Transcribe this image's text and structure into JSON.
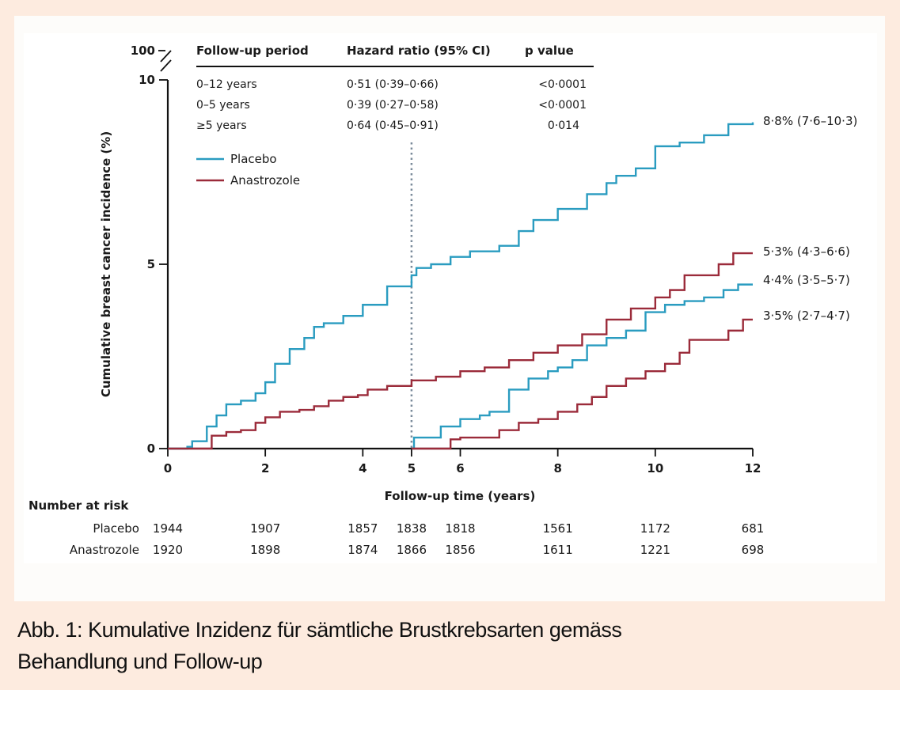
{
  "caption": {
    "line1": "Abb. 1: Kumulative Inzidenz für sämtliche Brustkrebsarten gemäss",
    "line2": "Behandlung und Follow-up"
  },
  "colors": {
    "placebo": "#2a9cc0",
    "anastrozole": "#9b2b3a",
    "frame": "#fdebdf",
    "divider": "#7a8a9a"
  },
  "hr_table": {
    "headers": [
      "Follow-up period",
      "Hazard ratio (95% CI)",
      "p value"
    ],
    "rows": [
      [
        "0–12 years",
        "0·51 (0·39–0·66)",
        "<0·0001"
      ],
      [
        "0–5 years",
        "0·39 (0·27–0·58)",
        "<0·0001"
      ],
      [
        "≥5 years",
        "0·64 (0·45–0·91)",
        "0·014"
      ]
    ]
  },
  "number_at_risk": {
    "title": "Number at risk",
    "times": [
      0,
      2,
      4,
      5,
      6,
      8,
      10,
      12
    ],
    "rows": [
      {
        "label": "Placebo",
        "values": [
          "1944",
          "1907",
          "1857",
          "1838",
          "1818",
          "1561",
          "1172",
          "681"
        ]
      },
      {
        "label": "Anastrozole",
        "values": [
          "1920",
          "1898",
          "1874",
          "1866",
          "1856",
          "1611",
          "1221",
          "698"
        ]
      }
    ]
  },
  "chart_data": {
    "type": "line",
    "title": "",
    "xlabel": "Follow-up time (years)",
    "ylabel": "Cumulative breast cancer incidence (%)",
    "xlim": [
      0,
      12
    ],
    "ylim": [
      0,
      10
    ],
    "x_ticks": [
      "0",
      "2",
      "4",
      "5",
      "6",
      "8",
      "10",
      "12"
    ],
    "x_tick_values": [
      0,
      2,
      4,
      5,
      6,
      8,
      10,
      12
    ],
    "y_ticks": [
      "0",
      "5",
      "10"
    ],
    "y_tick_values": [
      0,
      5,
      10
    ],
    "y_break_label": "100",
    "vertical_reference_line_x": 5,
    "legend": {
      "position": "top-left",
      "entries": [
        "Placebo",
        "Anastrozole"
      ]
    },
    "grid": false,
    "series": [
      {
        "name": "Placebo",
        "segment": "0–12 years",
        "end_label": "8·8% (7·6–10·3)",
        "points": [
          [
            0,
            0
          ],
          [
            0.4,
            0.05
          ],
          [
            0.5,
            0.2
          ],
          [
            0.8,
            0.6
          ],
          [
            1.0,
            0.9
          ],
          [
            1.2,
            1.2
          ],
          [
            1.5,
            1.3
          ],
          [
            1.8,
            1.5
          ],
          [
            2.0,
            1.8
          ],
          [
            2.2,
            2.3
          ],
          [
            2.5,
            2.7
          ],
          [
            2.8,
            3.0
          ],
          [
            3.0,
            3.3
          ],
          [
            3.2,
            3.4
          ],
          [
            3.6,
            3.6
          ],
          [
            4.0,
            3.9
          ],
          [
            4.5,
            4.4
          ],
          [
            5.0,
            4.7
          ],
          [
            5.1,
            4.9
          ],
          [
            5.4,
            5.0
          ],
          [
            5.8,
            5.2
          ],
          [
            6.2,
            5.35
          ],
          [
            6.8,
            5.5
          ],
          [
            7.2,
            5.9
          ],
          [
            7.5,
            6.2
          ],
          [
            8.0,
            6.5
          ],
          [
            8.6,
            6.9
          ],
          [
            9.0,
            7.2
          ],
          [
            9.2,
            7.4
          ],
          [
            9.6,
            7.6
          ],
          [
            10.0,
            8.2
          ],
          [
            10.5,
            8.3
          ],
          [
            11.0,
            8.5
          ],
          [
            11.5,
            8.8
          ],
          [
            12.0,
            8.85
          ]
        ]
      },
      {
        "name": "Anastrozole",
        "segment": "0–12 years",
        "end_label": "5·3% (4·3–6·6)",
        "points": [
          [
            0,
            0
          ],
          [
            0.4,
            0.0
          ],
          [
            0.8,
            0.0
          ],
          [
            0.9,
            0.35
          ],
          [
            1.2,
            0.45
          ],
          [
            1.5,
            0.5
          ],
          [
            1.8,
            0.7
          ],
          [
            2.0,
            0.85
          ],
          [
            2.3,
            1.0
          ],
          [
            2.7,
            1.05
          ],
          [
            3.0,
            1.15
          ],
          [
            3.3,
            1.3
          ],
          [
            3.6,
            1.4
          ],
          [
            3.9,
            1.45
          ],
          [
            4.1,
            1.6
          ],
          [
            4.5,
            1.7
          ],
          [
            5.0,
            1.85
          ],
          [
            5.5,
            1.95
          ],
          [
            6.0,
            2.1
          ],
          [
            6.5,
            2.2
          ],
          [
            7.0,
            2.4
          ],
          [
            7.5,
            2.6
          ],
          [
            8.0,
            2.8
          ],
          [
            8.5,
            3.1
          ],
          [
            9.0,
            3.5
          ],
          [
            9.5,
            3.8
          ],
          [
            10.0,
            4.1
          ],
          [
            10.3,
            4.3
          ],
          [
            10.6,
            4.7
          ],
          [
            11.0,
            4.7
          ],
          [
            11.3,
            5.0
          ],
          [
            11.6,
            5.3
          ],
          [
            12.0,
            5.3
          ]
        ]
      },
      {
        "name": "Placebo",
        "segment": "≥5 years",
        "end_label": "4·4% (3·5–5·7)",
        "points": [
          [
            5.0,
            0
          ],
          [
            5.05,
            0.3
          ],
          [
            5.3,
            0.3
          ],
          [
            5.6,
            0.6
          ],
          [
            6.0,
            0.8
          ],
          [
            6.4,
            0.9
          ],
          [
            6.6,
            1.0
          ],
          [
            7.0,
            1.6
          ],
          [
            7.4,
            1.9
          ],
          [
            7.8,
            2.1
          ],
          [
            8.0,
            2.2
          ],
          [
            8.3,
            2.4
          ],
          [
            8.6,
            2.8
          ],
          [
            9.0,
            3.0
          ],
          [
            9.4,
            3.2
          ],
          [
            9.8,
            3.7
          ],
          [
            10.2,
            3.9
          ],
          [
            10.6,
            4.0
          ],
          [
            11.0,
            4.1
          ],
          [
            11.4,
            4.3
          ],
          [
            11.7,
            4.45
          ],
          [
            12.0,
            4.45
          ]
        ]
      },
      {
        "name": "Anastrozole",
        "segment": "≥5 years",
        "end_label": "3·5% (2·7–4·7)",
        "points": [
          [
            5.0,
            0
          ],
          [
            5.5,
            0.0
          ],
          [
            5.8,
            0.25
          ],
          [
            6.0,
            0.3
          ],
          [
            6.5,
            0.3
          ],
          [
            6.8,
            0.5
          ],
          [
            7.2,
            0.7
          ],
          [
            7.6,
            0.8
          ],
          [
            8.0,
            1.0
          ],
          [
            8.4,
            1.2
          ],
          [
            8.7,
            1.4
          ],
          [
            9.0,
            1.7
          ],
          [
            9.4,
            1.9
          ],
          [
            9.8,
            2.1
          ],
          [
            10.2,
            2.3
          ],
          [
            10.5,
            2.6
          ],
          [
            10.7,
            2.95
          ],
          [
            11.2,
            2.95
          ],
          [
            11.5,
            3.2
          ],
          [
            11.8,
            3.5
          ],
          [
            12.0,
            3.5
          ]
        ]
      }
    ]
  }
}
